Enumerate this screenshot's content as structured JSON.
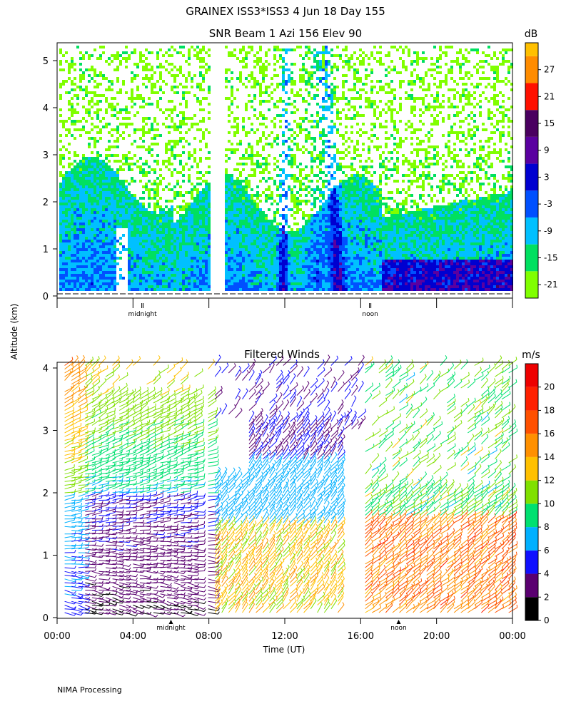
{
  "header": {
    "title": "GRAINEX ISS3*ISS3   4 Jun 18 Day 155"
  },
  "footer": {
    "processing": "NIMA Processing"
  },
  "shared_ylabel": "Altitude (km)",
  "chart_data": [
    {
      "type": "heatmap",
      "title": "SNR Beam 1 Azi 156 Elev 90",
      "ylim": [
        0,
        5.5
      ],
      "y_ticks": [
        "0",
        "1",
        "2",
        "3",
        "4",
        "5"
      ],
      "x_markers": [
        {
          "label": "midnight",
          "hour": 4.5
        },
        {
          "label": "noon",
          "hour": 16.5
        }
      ],
      "colorbar": {
        "unit": "dB",
        "range": [
          -24,
          33
        ],
        "tick_labels": [
          "27",
          "21",
          "15",
          "9",
          "3",
          "-3",
          "-9",
          "-15",
          "-21"
        ],
        "bins": [
          {
            "from": -24,
            "to": -18,
            "color": "#80ff00"
          },
          {
            "from": -18,
            "to": -12,
            "color": "#00e060"
          },
          {
            "from": -12,
            "to": -6,
            "color": "#00c0ff"
          },
          {
            "from": -6,
            "to": 0,
            "color": "#0050ff"
          },
          {
            "from": 0,
            "to": 6,
            "color": "#0000d0"
          },
          {
            "from": 6,
            "to": 12,
            "color": "#5a00a0"
          },
          {
            "from": 12,
            "to": 18,
            "color": "#4a0060"
          },
          {
            "from": 18,
            "to": 24,
            "color": "#ff1000"
          },
          {
            "from": 24,
            "to": 30,
            "color": "#ff8c00"
          },
          {
            "from": 30,
            "to": 33,
            "color": "#ffc000"
          }
        ]
      }
    },
    {
      "type": "scatter",
      "title": "Filtered Winds",
      "xlabel": "Time (UT)",
      "xlim": [
        0,
        24
      ],
      "ylim": [
        0,
        4.1
      ],
      "x_ticks": [
        "00:00",
        "04:00",
        "08:00",
        "12:00",
        "16:00",
        "20:00",
        "00:00"
      ],
      "y_ticks": [
        "0",
        "1",
        "2",
        "3",
        "4"
      ],
      "x_markers": [
        {
          "label": "midnight",
          "hour": 6
        },
        {
          "label": "noon",
          "hour": 18
        }
      ],
      "colorbar": {
        "unit": "m/s",
        "range": [
          0,
          22
        ],
        "tick_labels": [
          "20",
          "18",
          "16",
          "14",
          "12",
          "10",
          "8",
          "6",
          "4",
          "2",
          "0"
        ],
        "bins": [
          {
            "from": 0,
            "to": 2,
            "color": "#000000"
          },
          {
            "from": 2,
            "to": 4,
            "color": "#5a0070"
          },
          {
            "from": 4,
            "to": 6,
            "color": "#1010ff"
          },
          {
            "from": 6,
            "to": 8,
            "color": "#00b0ff"
          },
          {
            "from": 8,
            "to": 10,
            "color": "#00e070"
          },
          {
            "from": 10,
            "to": 12,
            "color": "#80e000"
          },
          {
            "from": 12,
            "to": 14,
            "color": "#ffc000"
          },
          {
            "from": 14,
            "to": 16,
            "color": "#ff9000"
          },
          {
            "from": 16,
            "to": 18,
            "color": "#ff5000"
          },
          {
            "from": 18,
            "to": 20,
            "color": "#ff2000"
          },
          {
            "from": 20,
            "to": 22,
            "color": "#ee0000"
          }
        ]
      }
    }
  ]
}
